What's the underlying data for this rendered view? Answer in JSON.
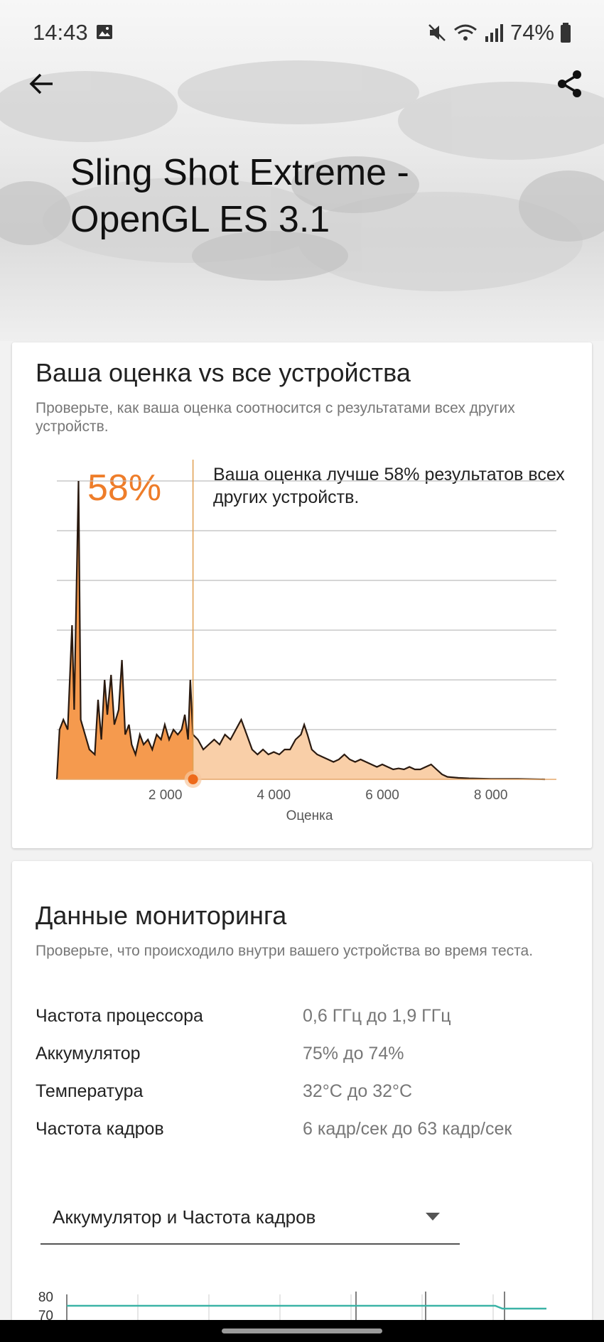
{
  "status_bar": {
    "time": "14:43",
    "battery": "74%"
  },
  "header": {
    "title_line1": "Sling Shot Extreme -",
    "title_line2": "OpenGL ES 3.1"
  },
  "comparison": {
    "title": "Ваша оценка vs все устройства",
    "subtitle": "Проверьте, как ваша оценка соотносится с результатами всех других устройств.",
    "percent": "58%",
    "percent_description": "Ваша оценка лучше 58% результатов всех других устройств."
  },
  "chart_data": {
    "type": "area",
    "title": "",
    "xlabel": "Оценка",
    "ylabel": "",
    "x_ticks": [
      "2 000",
      "4 000",
      "6 000",
      "8 000"
    ],
    "xlim": [
      0,
      9000
    ],
    "ylim": [
      0,
      6
    ],
    "grid": true,
    "your_score": 2510,
    "series": [
      {
        "values": [
          [
            0,
            0
          ],
          [
            50,
            1.0
          ],
          [
            120,
            1.2
          ],
          [
            200,
            1.0
          ],
          [
            280,
            3.1
          ],
          [
            320,
            1.4
          ],
          [
            400,
            6.0
          ],
          [
            440,
            1.2
          ],
          [
            520,
            0.9
          ],
          [
            600,
            0.6
          ],
          [
            700,
            0.5
          ],
          [
            760,
            1.6
          ],
          [
            820,
            0.8
          ],
          [
            880,
            2.0
          ],
          [
            930,
            1.3
          ],
          [
            1000,
            2.1
          ],
          [
            1060,
            1.1
          ],
          [
            1140,
            1.4
          ],
          [
            1200,
            2.4
          ],
          [
            1260,
            0.9
          ],
          [
            1330,
            1.1
          ],
          [
            1380,
            0.7
          ],
          [
            1450,
            0.5
          ],
          [
            1530,
            0.9
          ],
          [
            1600,
            0.7
          ],
          [
            1680,
            0.8
          ],
          [
            1760,
            0.6
          ],
          [
            1840,
            0.9
          ],
          [
            1920,
            0.8
          ],
          [
            1990,
            1.1
          ],
          [
            2070,
            0.8
          ],
          [
            2150,
            1.0
          ],
          [
            2230,
            0.9
          ],
          [
            2300,
            1.0
          ],
          [
            2360,
            1.3
          ],
          [
            2420,
            0.8
          ],
          [
            2460,
            2.0
          ],
          [
            2510,
            0.9
          ],
          [
            2600,
            0.8
          ],
          [
            2700,
            0.6
          ],
          [
            2800,
            0.7
          ],
          [
            2900,
            0.8
          ],
          [
            3000,
            0.7
          ],
          [
            3100,
            0.9
          ],
          [
            3200,
            0.8
          ],
          [
            3300,
            1.0
          ],
          [
            3400,
            1.2
          ],
          [
            3500,
            0.9
          ],
          [
            3600,
            0.6
          ],
          [
            3700,
            0.5
          ],
          [
            3800,
            0.6
          ],
          [
            3900,
            0.5
          ],
          [
            4000,
            0.55
          ],
          [
            4100,
            0.5
          ],
          [
            4200,
            0.6
          ],
          [
            4300,
            0.6
          ],
          [
            4400,
            0.8
          ],
          [
            4500,
            0.9
          ],
          [
            4560,
            1.1
          ],
          [
            4620,
            0.9
          ],
          [
            4700,
            0.6
          ],
          [
            4800,
            0.5
          ],
          [
            4900,
            0.45
          ],
          [
            5000,
            0.4
          ],
          [
            5100,
            0.35
          ],
          [
            5200,
            0.4
          ],
          [
            5300,
            0.5
          ],
          [
            5400,
            0.4
          ],
          [
            5500,
            0.35
          ],
          [
            5600,
            0.4
          ],
          [
            5700,
            0.35
          ],
          [
            5800,
            0.3
          ],
          [
            5900,
            0.25
          ],
          [
            6000,
            0.3
          ],
          [
            6100,
            0.25
          ],
          [
            6200,
            0.2
          ],
          [
            6300,
            0.22
          ],
          [
            6400,
            0.2
          ],
          [
            6500,
            0.25
          ],
          [
            6600,
            0.2
          ],
          [
            6700,
            0.2
          ],
          [
            6800,
            0.25
          ],
          [
            6900,
            0.3
          ],
          [
            7000,
            0.2
          ],
          [
            7100,
            0.1
          ],
          [
            7200,
            0.05
          ],
          [
            7400,
            0.03
          ],
          [
            7600,
            0.02
          ],
          [
            8000,
            0.01
          ],
          [
            8500,
            0.01
          ],
          [
            9000,
            0
          ]
        ]
      }
    ]
  },
  "monitoring": {
    "title": "Данные мониторинга",
    "subtitle": "Проверьте, что происходило внутри вашего устройства во время теста.",
    "rows": [
      {
        "label": "Частота процессора",
        "value": "0,6 ГГц до 1,9 ГГц"
      },
      {
        "label": "Аккумулятор",
        "value": "75% до 74%"
      },
      {
        "label": "Температура",
        "value": "32°C до 32°C"
      },
      {
        "label": "Частота кадров",
        "value": "6 кадр/сек до 63 кадр/сек"
      }
    ],
    "select_value": "Аккумулятор и Частота кадров",
    "mini_chart_ticks": [
      "80",
      "70"
    ]
  },
  "colors": {
    "accent": "#ee7d2a",
    "area_below": "#f59a4e",
    "area_above": "#f9cfa8",
    "teal_line": "#3bb3a6"
  }
}
